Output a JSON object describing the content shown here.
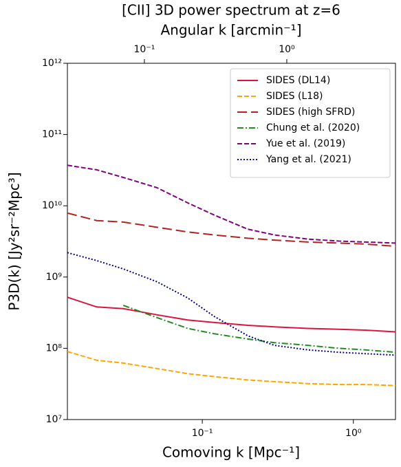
{
  "chart_data": {
    "type": "line",
    "title": "[CII] 3D power spectrum at z=6",
    "x_label": "Comoving k [Mpc⁻¹]",
    "x2_label": "Angular k [arcmin⁻¹]",
    "y_label": "P3D(k) [Jy²sr⁻²Mpc³]",
    "x_log": true,
    "y_log": true,
    "grid": false,
    "legend": "upper right",
    "xlim": [
      0.0128,
      1.9
    ],
    "xticks": [
      {
        "value": 0.1,
        "label": "10⁻¹"
      },
      {
        "value": 1,
        "label": "10⁰"
      }
    ],
    "x2lim": [
      0.0288,
      5.8
    ],
    "x2ticks": [
      {
        "value": 0.1,
        "label": "10⁻¹"
      },
      {
        "value": 1,
        "label": "10⁰"
      }
    ],
    "ylim": [
      10000000.0,
      1000000000000.0
    ],
    "yticks": [
      {
        "value": 10000000.0,
        "label": "10⁷"
      },
      {
        "value": 100000000.0,
        "label": "10⁸"
      },
      {
        "value": 1000000000.0,
        "label": "10⁹"
      },
      {
        "value": 10000000000.0,
        "label": "10¹⁰"
      },
      {
        "value": 100000000000.0,
        "label": "10¹¹"
      },
      {
        "value": 1000000000000.0,
        "label": "10¹²"
      }
    ],
    "x": [
      0.0128,
      0.02,
      0.03,
      0.05,
      0.08,
      0.12,
      0.2,
      0.3,
      0.5,
      0.8,
      1.2,
      1.9
    ],
    "series": [
      {
        "name": "SIDES (DL14)",
        "color": "#dc143c",
        "dash": "solid",
        "values": [
          520000000.0,
          380000000.0,
          360000000.0,
          295000000.0,
          250000000.0,
          230000000.0,
          210000000.0,
          200000000.0,
          190000000.0,
          185000000.0,
          180000000.0,
          170000000.0
        ]
      },
      {
        "name": "SIDES (L18)",
        "color": "#ffa500",
        "dash": "dashed",
        "values": [
          90000000.0,
          68000000.0,
          62000000.0,
          52000000.0,
          44000000.0,
          40000000.0,
          36000000.0,
          34000000.0,
          32000000.0,
          31000000.0,
          31000000.0,
          30000000.0
        ]
      },
      {
        "name": "SIDES (high SFRD)",
        "color": "#b22222",
        "dash": "longdash",
        "values": [
          7900000000.0,
          6200000000.0,
          5900000000.0,
          5000000000.0,
          4300000000.0,
          3900000000.0,
          3500000000.0,
          3300000000.0,
          3100000000.0,
          3000000000.0,
          2900000000.0,
          2700000000.0
        ]
      },
      {
        "name": "Chung et al. (2020)",
        "color": "#228b22",
        "dash": "dashdot",
        "values": [
          null,
          null,
          400000000.0,
          270000000.0,
          190000000.0,
          160000000.0,
          135000000.0,
          120000000.0,
          110000000.0,
          100000000.0,
          95000000.0,
          88000000.0
        ]
      },
      {
        "name": "Yue et al. (2019)",
        "color": "#800080",
        "dash": "dashed",
        "values": [
          37000000000.0,
          32000000000.0,
          25000000000.0,
          18000000000.0,
          11000000000.0,
          7400000000.0,
          4700000000.0,
          3900000000.0,
          3400000000.0,
          3200000000.0,
          3100000000.0,
          3000000000.0
        ]
      },
      {
        "name": "Yang et al. (2021)",
        "color": "#00008b",
        "dash": "dotted",
        "values": [
          2200000000.0,
          1700000000.0,
          1300000000.0,
          860000000.0,
          510000000.0,
          280000000.0,
          150000000.0,
          110000000.0,
          95000000.0,
          88000000.0,
          84000000.0,
          80000000.0
        ]
      }
    ]
  }
}
